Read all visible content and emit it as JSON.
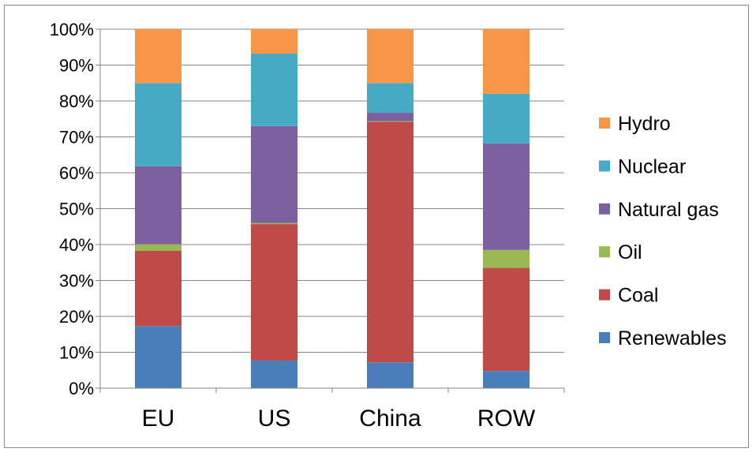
{
  "chart_data": {
    "type": "bar",
    "stacked": true,
    "percent": true,
    "categories": [
      "EU",
      "US",
      "China",
      "ROW"
    ],
    "series": [
      {
        "name": "Renewables",
        "color": "#4A7EBB",
        "values": [
          17.3,
          7.7,
          7.2,
          4.8
        ]
      },
      {
        "name": "Coal",
        "color": "#BE4B48",
        "values": [
          21.0,
          38.0,
          67.0,
          28.7
        ]
      },
      {
        "name": "Oil",
        "color": "#98B954",
        "values": [
          1.8,
          0.3,
          0.2,
          5.0
        ]
      },
      {
        "name": "Natural gas",
        "color": "#7D60A0",
        "values": [
          21.7,
          27.0,
          2.3,
          29.7
        ]
      },
      {
        "name": "Nuclear",
        "color": "#46AAC5",
        "values": [
          23.2,
          20.2,
          8.3,
          13.8
        ]
      },
      {
        "name": "Hydro",
        "color": "#F79646",
        "values": [
          15.0,
          6.8,
          15.0,
          18.0
        ]
      }
    ],
    "ylim": [
      0,
      100
    ],
    "yticks": [
      "0%",
      "10%",
      "20%",
      "30%",
      "40%",
      "50%",
      "60%",
      "70%",
      "80%",
      "90%",
      "100%"
    ],
    "grid": true,
    "legend_position": "right",
    "legend_order": [
      "Hydro",
      "Nuclear",
      "Natural gas",
      "Oil",
      "Coal",
      "Renewables"
    ],
    "title": "",
    "xlabel": "",
    "ylabel": ""
  }
}
